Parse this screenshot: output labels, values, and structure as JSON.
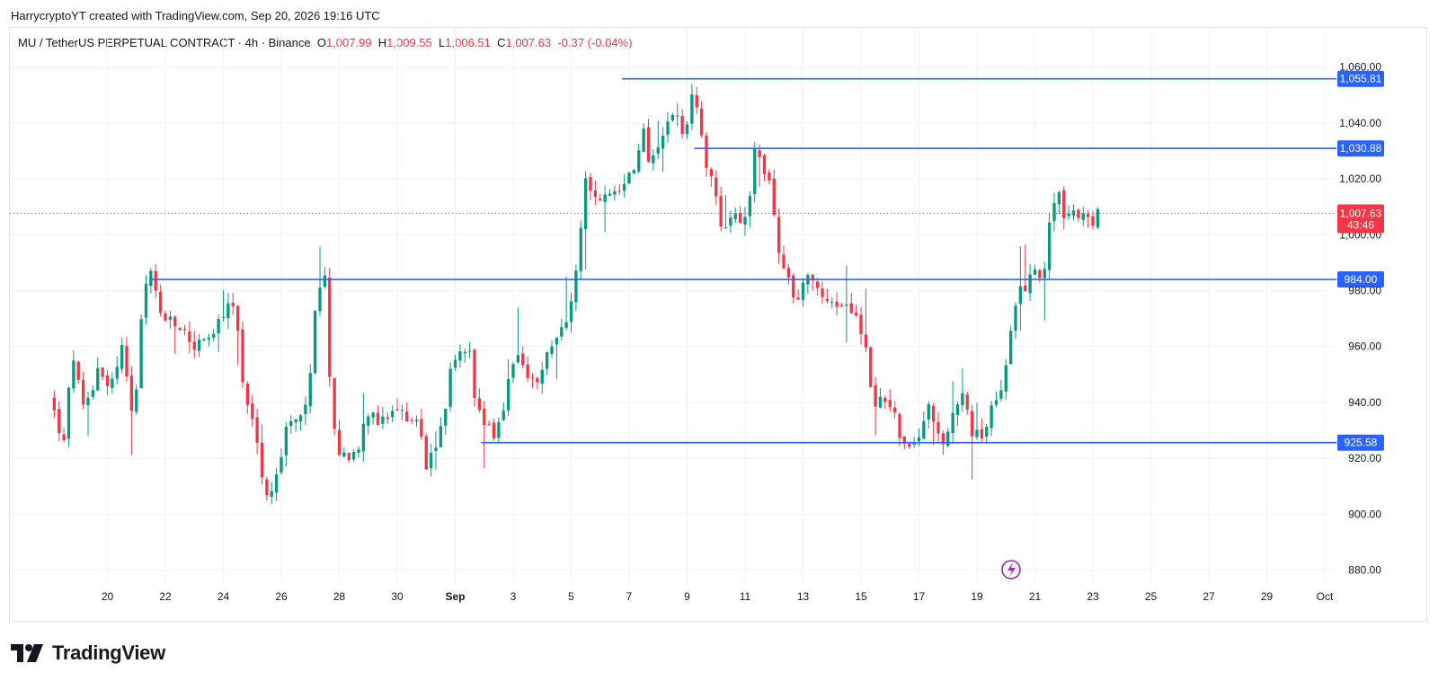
{
  "credit": "HarrycryptoYT created with TradingView.com, Sep 20, 2026 19:16 UTC",
  "legend": {
    "symbol": "MU / TetherUS PERPETUAL CONTRACT · 4h · Binance",
    "o_label": "O",
    "o": "1,007.99",
    "h_label": "H",
    "h": "1,009.55",
    "l_label": "L",
    "l": "1,006.51",
    "c_label": "C",
    "c": "1,007.63",
    "change": "-0.37 (-0.04%)"
  },
  "brand": {
    "name": "TradingView",
    "icon": "tradingview-logo-icon"
  },
  "colors": {
    "up": "#089981",
    "down": "#f23645",
    "level": "#2962ff",
    "grid": "#f0f3fa",
    "text": "#131722"
  },
  "chart_data": {
    "type": "candlestick",
    "timeframe": "4h",
    "y_axis": {
      "min": 875,
      "max": 1066,
      "ticks": [
        880,
        900,
        920,
        940,
        960,
        980,
        1000,
        1020,
        1040,
        1060
      ],
      "tick_labels": [
        "880.00",
        "900.00",
        "920.00",
        "940.00",
        "960.00",
        "980.00",
        "1,000.00",
        "1,020.00",
        "1,040.00",
        "1,060.00"
      ]
    },
    "x_axis": {
      "start_day": "2026-08-18",
      "end_day": "2026-10-02",
      "ticks": [
        {
          "day": 20,
          "label": "20"
        },
        {
          "day": 22,
          "label": "22"
        },
        {
          "day": 24,
          "label": "24"
        },
        {
          "day": 26,
          "label": "26"
        },
        {
          "day": 28,
          "label": "28"
        },
        {
          "day": 30,
          "label": "30"
        },
        {
          "day": 32,
          "label": "Sep",
          "bold": true
        },
        {
          "day": 34,
          "label": "3"
        },
        {
          "day": 36,
          "label": "5"
        },
        {
          "day": 38,
          "label": "7"
        },
        {
          "day": 40,
          "label": "9"
        },
        {
          "day": 42,
          "label": "11"
        },
        {
          "day": 44,
          "label": "13"
        },
        {
          "day": 46,
          "label": "15"
        },
        {
          "day": 48,
          "label": "17"
        },
        {
          "day": 50,
          "label": "19"
        },
        {
          "day": 52,
          "label": "21"
        },
        {
          "day": 54,
          "label": "23"
        },
        {
          "day": 56,
          "label": "25"
        },
        {
          "day": 58,
          "label": "27"
        },
        {
          "day": 60,
          "label": "29"
        },
        {
          "day": 62,
          "label": "Oct"
        }
      ]
    },
    "levels": [
      {
        "price": 1055.81,
        "label": "1,055.81",
        "from_day": 37.75
      },
      {
        "price": 1030.88,
        "label": "1,030.88",
        "from_day": 40.25
      },
      {
        "price": 984.0,
        "label": "984.00",
        "from_day": 21.5
      },
      {
        "price": 925.58,
        "label": "925.58",
        "from_day": 32.9
      }
    ],
    "current_price": {
      "price": 1007.63,
      "label": "1,007.63",
      "countdown": "43:46"
    },
    "path": [
      [
        18.0,
        942
      ],
      [
        18.5,
        925
      ],
      [
        18.8,
        958
      ],
      [
        19.2,
        935
      ],
      [
        19.7,
        954
      ],
      [
        20.1,
        945
      ],
      [
        20.5,
        960
      ],
      [
        20.9,
        932
      ],
      [
        21.2,
        976
      ],
      [
        21.5,
        988
      ],
      [
        21.8,
        972
      ],
      [
        22.2,
        968
      ],
      [
        22.6,
        966
      ],
      [
        23.0,
        960
      ],
      [
        23.4,
        962
      ],
      [
        23.8,
        967
      ],
      [
        24.1,
        973
      ],
      [
        24.4,
        975
      ],
      [
        24.7,
        945
      ],
      [
        25.0,
        935
      ],
      [
        25.3,
        915
      ],
      [
        25.6,
        905
      ],
      [
        25.9,
        918
      ],
      [
        26.2,
        932
      ],
      [
        26.6,
        936
      ],
      [
        26.9,
        937
      ],
      [
        27.2,
        975
      ],
      [
        27.5,
        983
      ],
      [
        27.7,
        945
      ],
      [
        27.9,
        925
      ],
      [
        28.3,
        918
      ],
      [
        28.6,
        922
      ],
      [
        28.9,
        938
      ],
      [
        29.3,
        932
      ],
      [
        29.7,
        934
      ],
      [
        30.0,
        937
      ],
      [
        30.4,
        935
      ],
      [
        30.7,
        934
      ],
      [
        31.0,
        918
      ],
      [
        31.3,
        925
      ],
      [
        31.6,
        935
      ],
      [
        31.9,
        958
      ],
      [
        32.2,
        956
      ],
      [
        32.5,
        960
      ],
      [
        32.7,
        940
      ],
      [
        33.0,
        933
      ],
      [
        33.3,
        927
      ],
      [
        33.6,
        935
      ],
      [
        33.9,
        950
      ],
      [
        34.2,
        955
      ],
      [
        34.5,
        948
      ],
      [
        34.8,
        945
      ],
      [
        35.1,
        955
      ],
      [
        35.4,
        962
      ],
      [
        35.7,
        965
      ],
      [
        36.0,
        975
      ],
      [
        36.3,
        998
      ],
      [
        36.5,
        1018
      ],
      [
        36.8,
        1012
      ],
      [
        37.1,
        1016
      ],
      [
        37.4,
        1015
      ],
      [
        37.7,
        1017
      ],
      [
        38.0,
        1022
      ],
      [
        38.3,
        1028
      ],
      [
        38.5,
        1036
      ],
      [
        38.7,
        1024
      ],
      [
        39.0,
        1030
      ],
      [
        39.3,
        1040
      ],
      [
        39.5,
        1045
      ],
      [
        39.8,
        1037
      ],
      [
        40.0,
        1040
      ],
      [
        40.2,
        1055
      ],
      [
        40.35,
        1045
      ],
      [
        40.6,
        1028
      ],
      [
        40.9,
        1020
      ],
      [
        41.1,
        1006
      ],
      [
        41.4,
        1003
      ],
      [
        41.7,
        1010
      ],
      [
        41.9,
        1003
      ],
      [
        42.2,
        1013
      ],
      [
        42.3,
        1029
      ],
      [
        42.6,
        1025
      ],
      [
        42.9,
        1015
      ],
      [
        43.2,
        990
      ],
      [
        43.5,
        984
      ],
      [
        43.8,
        975
      ],
      [
        44.0,
        982
      ],
      [
        44.3,
        987
      ],
      [
        44.6,
        978
      ],
      [
        44.9,
        976
      ],
      [
        45.2,
        975
      ],
      [
        45.5,
        973
      ],
      [
        45.8,
        970
      ],
      [
        46.1,
        962
      ],
      [
        46.3,
        950
      ],
      [
        46.5,
        938
      ],
      [
        46.8,
        942
      ],
      [
        47.1,
        938
      ],
      [
        47.4,
        925
      ],
      [
        47.7,
        922
      ],
      [
        48.0,
        928
      ],
      [
        48.3,
        938
      ],
      [
        48.6,
        932
      ],
      [
        48.9,
        926
      ],
      [
        49.2,
        936
      ],
      [
        49.5,
        942
      ],
      [
        49.8,
        930
      ],
      [
        50.1,
        928
      ],
      [
        50.4,
        935
      ],
      [
        50.7,
        940
      ],
      [
        51.0,
        955
      ],
      [
        51.3,
        975
      ],
      [
        51.5,
        983
      ],
      [
        51.7,
        982
      ],
      [
        51.9,
        990
      ],
      [
        52.2,
        984
      ],
      [
        52.4,
        992
      ],
      [
        52.6,
        1012
      ],
      [
        52.8,
        1017
      ],
      [
        53.0,
        1008
      ],
      [
        53.2,
        1006
      ],
      [
        53.5,
        1007
      ],
      [
        53.8,
        1009
      ],
      [
        54.0,
        1005
      ],
      [
        54.2,
        1008
      ],
      [
        54.3,
        1007.63
      ]
    ]
  }
}
